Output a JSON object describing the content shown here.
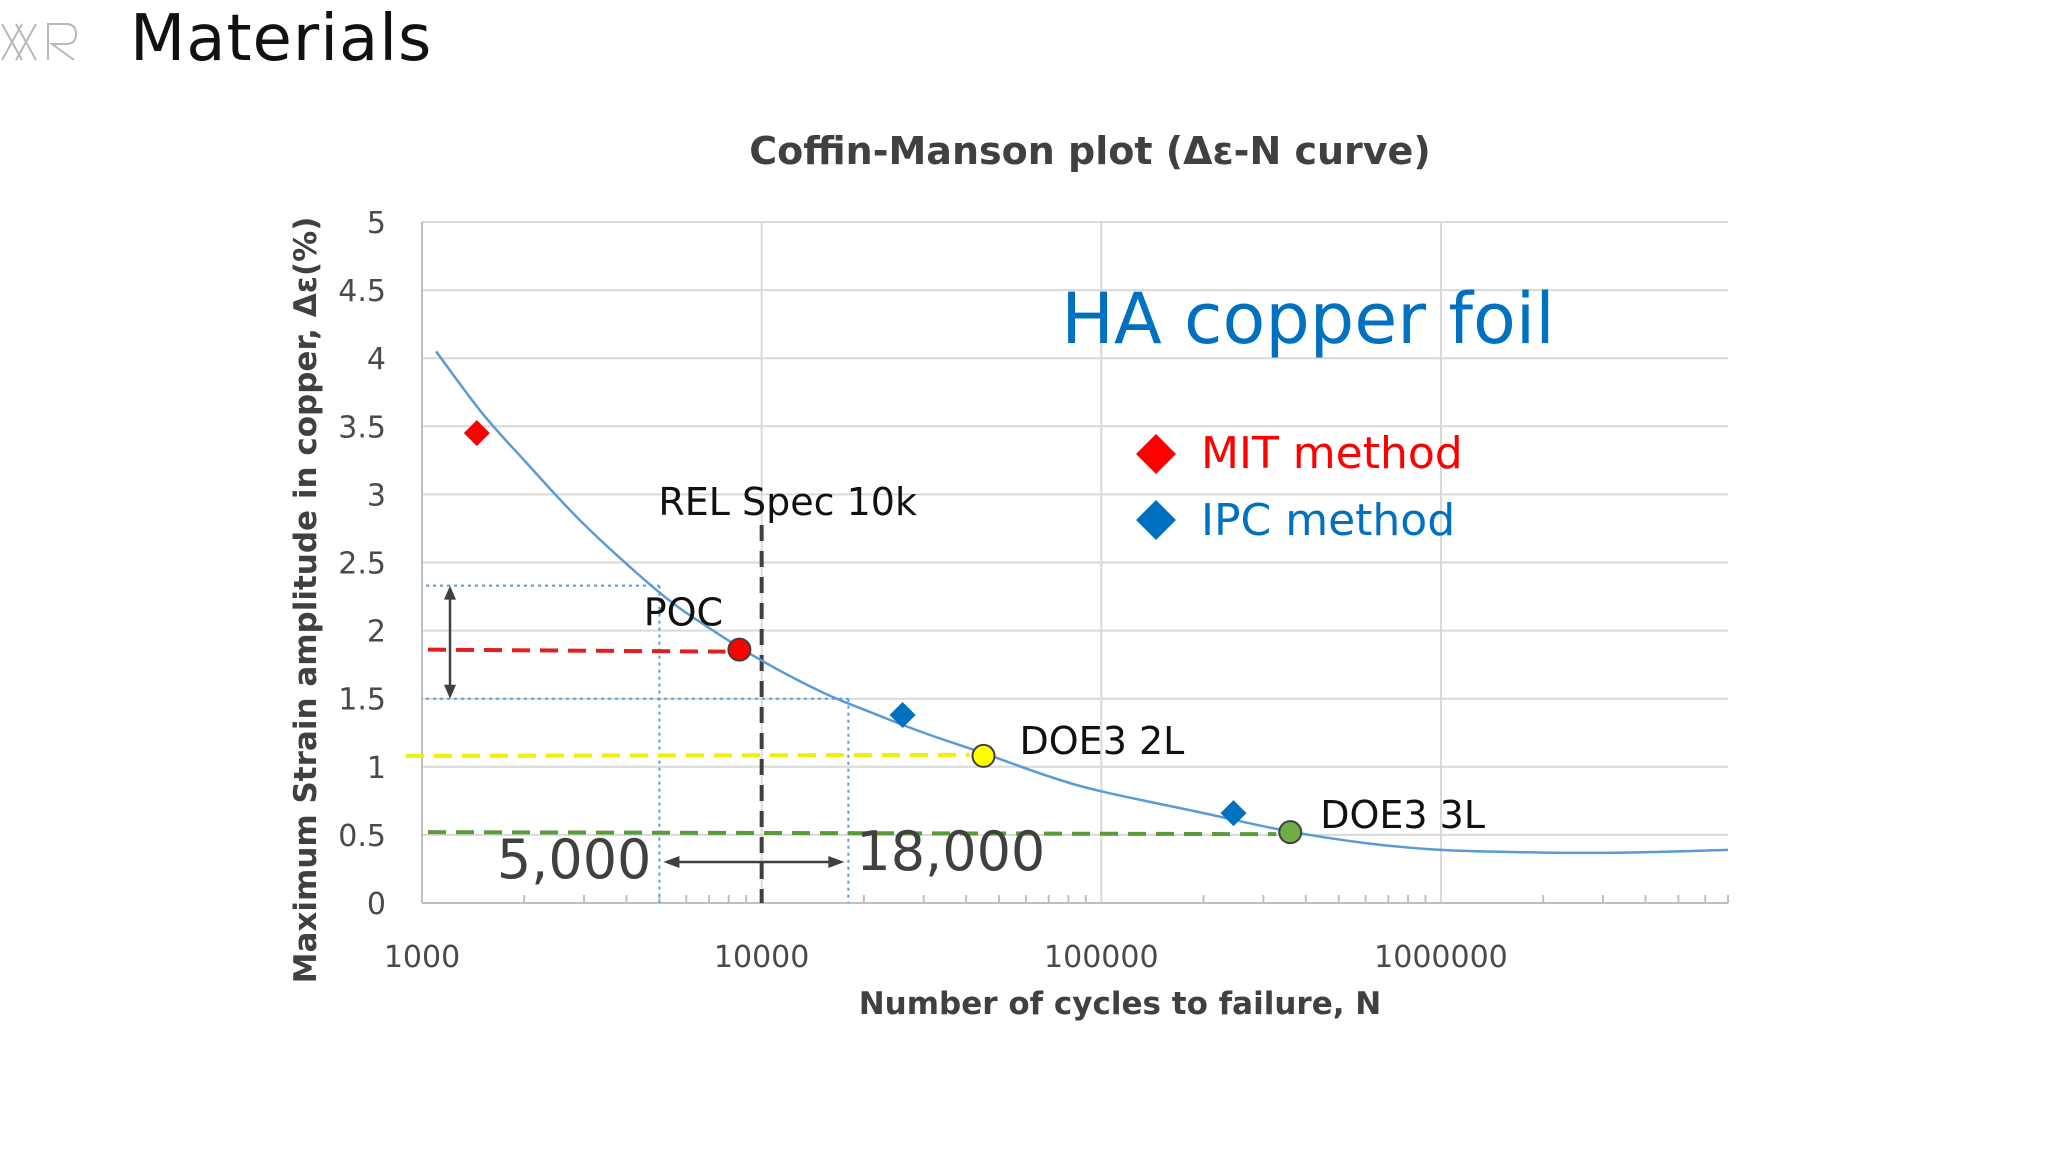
{
  "slide": {
    "title": "Materials",
    "logo_icon": "xr-logo-icon"
  },
  "chart_data": {
    "type": "line",
    "title": "Coffin-Manson plot (Δε-N curve)",
    "xlabel": "Number of cycles to failure, N",
    "ylabel": "Maximum Strain amplitude in copper, Δε(%)",
    "xscale": "log",
    "xlim": [
      1000,
      7000000
    ],
    "ylim": [
      0,
      5
    ],
    "x_ticks": [
      "1000",
      "10000",
      "100000",
      "1000000"
    ],
    "y_ticks": [
      "0",
      "0.5",
      "1",
      "1.5",
      "2",
      "2.5",
      "3",
      "3.5",
      "4",
      "4.5",
      "5"
    ],
    "grid": true,
    "inset_label": "HA copper foil",
    "legend_position": "right",
    "series": [
      {
        "name": "MIT method",
        "kind": "scatter",
        "marker": "diamond",
        "color": "#ff0000",
        "points": [
          [
            1450,
            3.45
          ]
        ]
      },
      {
        "name": "IPC method",
        "kind": "scatter",
        "marker": "diamond",
        "color": "#0070c0",
        "points": [
          [
            26000,
            1.38
          ],
          [
            245000,
            0.66
          ]
        ]
      }
    ],
    "fit_curve": {
      "color": "#5b9bd5",
      "points": [
        [
          1100,
          4.05
        ],
        [
          1500,
          3.6
        ],
        [
          2000,
          3.25
        ],
        [
          3000,
          2.78
        ],
        [
          5000,
          2.28
        ],
        [
          7000,
          2.02
        ],
        [
          10000,
          1.78
        ],
        [
          15000,
          1.55
        ],
        [
          20000,
          1.42
        ],
        [
          30000,
          1.25
        ],
        [
          45000,
          1.1
        ],
        [
          70000,
          0.93
        ],
        [
          100000,
          0.82
        ],
        [
          200000,
          0.66
        ],
        [
          350000,
          0.53
        ],
        [
          600000,
          0.44
        ],
        [
          1000000,
          0.39
        ],
        [
          2000000,
          0.37
        ],
        [
          3500000,
          0.37
        ],
        [
          7000000,
          0.39
        ]
      ]
    },
    "design_points": [
      {
        "label": "POC",
        "x": 8600,
        "y": 1.86,
        "color": "#ff0000",
        "guide_color": "#e02020"
      },
      {
        "label": "DOE3 2L",
        "x": 45000,
        "y": 1.08,
        "color": "#ffff00",
        "guide_color": "#f0f000"
      },
      {
        "label": "DOE3 3L",
        "x": 360000,
        "y": 0.52,
        "color": "#70ad47",
        "guide_color": "#5a9a3a"
      }
    ],
    "spec_line": {
      "label": "REL Spec 10k",
      "x": 10000,
      "color": "#404040"
    },
    "strain_band": {
      "y_low": 1.5,
      "y_high": 2.33,
      "color": "#5b9bd5"
    },
    "cycle_range": {
      "low_label": "5,000",
      "high_label": "18,000",
      "low": 5000,
      "high": 18000
    }
  }
}
